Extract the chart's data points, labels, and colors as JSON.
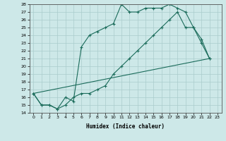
{
  "xlabel": "Humidex (Indice chaleur)",
  "ylabel": "",
  "bg_color": "#cde8e8",
  "line_color": "#1a6b5a",
  "grid_color": "#aacccc",
  "xlim": [
    -0.5,
    23.5
  ],
  "ylim": [
    14,
    28
  ],
  "xticks": [
    0,
    1,
    2,
    3,
    4,
    5,
    6,
    7,
    8,
    9,
    10,
    11,
    12,
    13,
    14,
    15,
    16,
    17,
    18,
    19,
    20,
    21,
    22,
    23
  ],
  "yticks": [
    14,
    15,
    16,
    17,
    18,
    19,
    20,
    21,
    22,
    23,
    24,
    25,
    26,
    27,
    28
  ],
  "curve1_x": [
    0,
    1,
    2,
    3,
    4,
    5,
    6,
    7,
    8,
    9,
    10,
    11,
    12,
    13,
    14,
    15,
    16,
    17,
    18,
    19,
    20,
    21,
    22
  ],
  "curve1_y": [
    16.5,
    15,
    15,
    14.5,
    16.0,
    15.5,
    22.5,
    24.0,
    24.5,
    25.0,
    25.5,
    28.0,
    27.0,
    27.0,
    27.5,
    27.5,
    27.5,
    28.0,
    27.5,
    27.0,
    25.0,
    23.0,
    21.0
  ],
  "curve2_x": [
    0,
    1,
    2,
    3,
    4,
    5,
    6,
    7,
    8,
    9,
    10,
    11,
    12,
    13,
    14,
    15,
    16,
    17,
    18,
    19,
    20,
    21,
    22
  ],
  "curve2_y": [
    16.5,
    15.0,
    15.0,
    14.5,
    15.0,
    16.0,
    16.5,
    16.5,
    17.0,
    17.5,
    19.0,
    20.0,
    21.0,
    22.0,
    23.0,
    24.0,
    25.0,
    26.0,
    27.0,
    25.0,
    25.0,
    23.5,
    21.0
  ],
  "curve3_x": [
    0,
    22
  ],
  "curve3_y": [
    16.5,
    21.0
  ]
}
